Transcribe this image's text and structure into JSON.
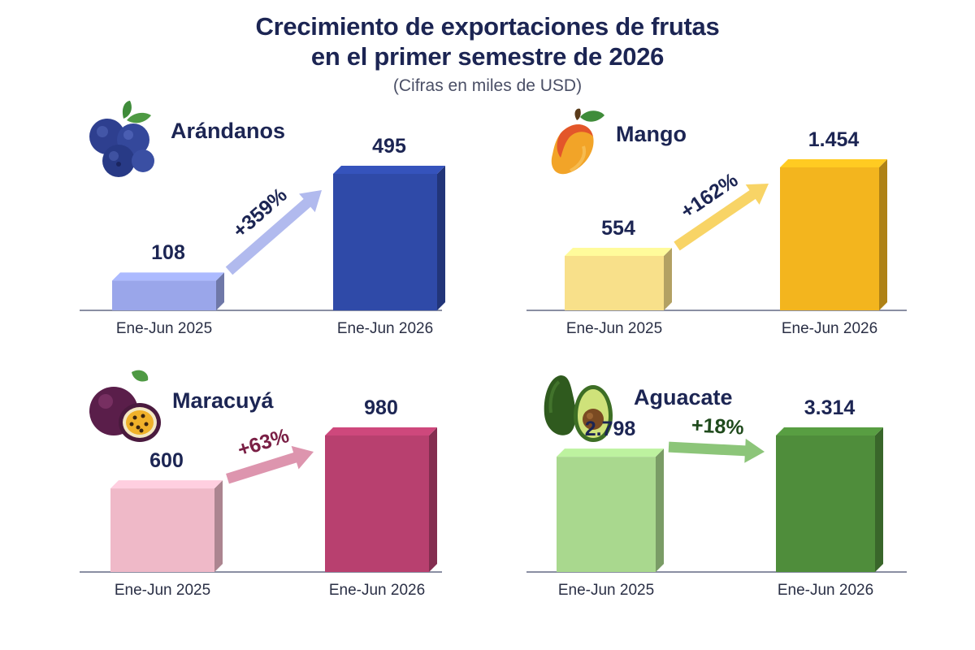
{
  "header": {
    "title_line1": "Crecimiento de exportaciones de frutas",
    "title_line2": "en el primer semestre de 2026",
    "subtitle": "(Cifras en miles de USD)"
  },
  "chart_data": [
    {
      "type": "bar",
      "title": "Arándanos",
      "categories": [
        "Ene-Jun 2025",
        "Ene-Jun 2026"
      ],
      "values": [
        108,
        495
      ],
      "value_labels": [
        "108",
        "495"
      ],
      "growth_label": "+359%",
      "icon": "blueberry-icon",
      "colors": {
        "light": "#9aa6ea",
        "dark": "#2f4aa8",
        "arrow": "#a8b2ec",
        "pct": "#1c2553"
      }
    },
    {
      "type": "bar",
      "title": "Mango",
      "categories": [
        "Ene-Jun 2025",
        "Ene-Jun 2026"
      ],
      "values": [
        554,
        1454
      ],
      "value_labels": [
        "554",
        "1.454"
      ],
      "growth_label": "+162%",
      "icon": "mango-icon",
      "colors": {
        "light": "#f8e08a",
        "dark": "#f3b51e",
        "arrow": "#f7cf55",
        "pct": "#1c2553"
      }
    },
    {
      "type": "bar",
      "title": "Maracuyá",
      "categories": [
        "Ene-Jun 2025",
        "Ene-Jun 2026"
      ],
      "values": [
        600,
        980
      ],
      "value_labels": [
        "600",
        "980"
      ],
      "growth_label": "+63%",
      "icon": "passion-fruit-icon",
      "colors": {
        "light": "#efb9c8",
        "dark": "#b8406f",
        "arrow": "#d98aa5",
        "pct": "#7a1f45"
      }
    },
    {
      "type": "bar",
      "title": "Aguacate",
      "categories": [
        "Ene-Jun 2025",
        "Ene-Jun 2026"
      ],
      "values": [
        2798,
        3314
      ],
      "value_labels": [
        "2.798",
        "3.314"
      ],
      "growth_label": "+18%",
      "icon": "avocado-icon",
      "colors": {
        "light": "#a9d88e",
        "dark": "#4f8d3b",
        "arrow": "#7fbf6a",
        "pct": "#1f4a1c"
      }
    }
  ]
}
